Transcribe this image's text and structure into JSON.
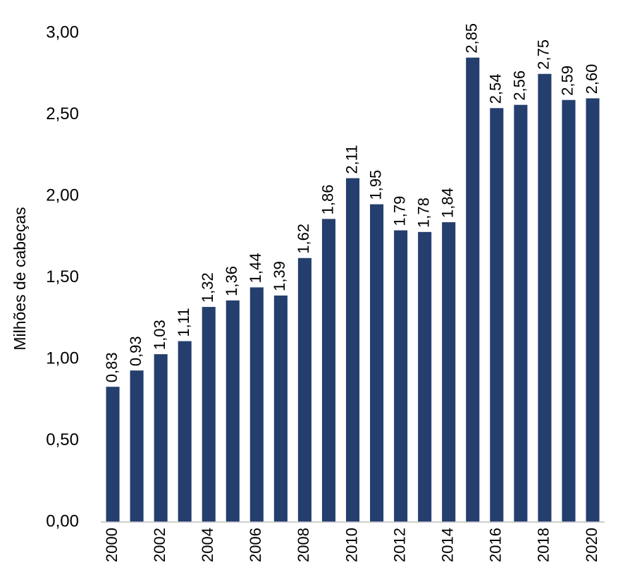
{
  "chart_data": {
    "type": "bar",
    "y_label": "Milhões de cabeças",
    "categories": [
      "2000",
      null,
      "2002",
      null,
      "2004",
      null,
      "2006",
      null,
      "2008",
      null,
      "2010",
      null,
      "2012",
      null,
      "2014",
      null,
      "2016",
      null,
      "2018",
      null,
      "2020"
    ],
    "values": [
      0.83,
      0.93,
      1.03,
      1.11,
      1.32,
      1.36,
      1.44,
      1.39,
      1.62,
      1.86,
      2.11,
      1.95,
      1.79,
      1.78,
      1.84,
      2.85,
      2.54,
      2.56,
      2.75,
      2.59,
      2.6
    ],
    "value_labels": [
      "0,83",
      "0,93",
      "1,03",
      "1,11",
      "1,32",
      "1,36",
      "1,44",
      "1,39",
      "1,62",
      "1,86",
      "2,11",
      "1,95",
      "1,79",
      "1,78",
      "1,84",
      "2,85",
      "2,54",
      "2,56",
      "2,75",
      "2,59",
      "2,60"
    ],
    "color": "#243f6e",
    "ylim": [
      0,
      3
    ],
    "yticks": [
      {
        "value": 0,
        "label": "0,00"
      },
      {
        "value": 0.5,
        "label": "0,50"
      },
      {
        "value": 1,
        "label": "1,00"
      },
      {
        "value": 1.5,
        "label": "1,50"
      },
      {
        "value": 2,
        "label": "2,00"
      },
      {
        "value": 2.5,
        "label": "2,50"
      },
      {
        "value": 3,
        "label": "3,00"
      }
    ],
    "grid": false
  }
}
